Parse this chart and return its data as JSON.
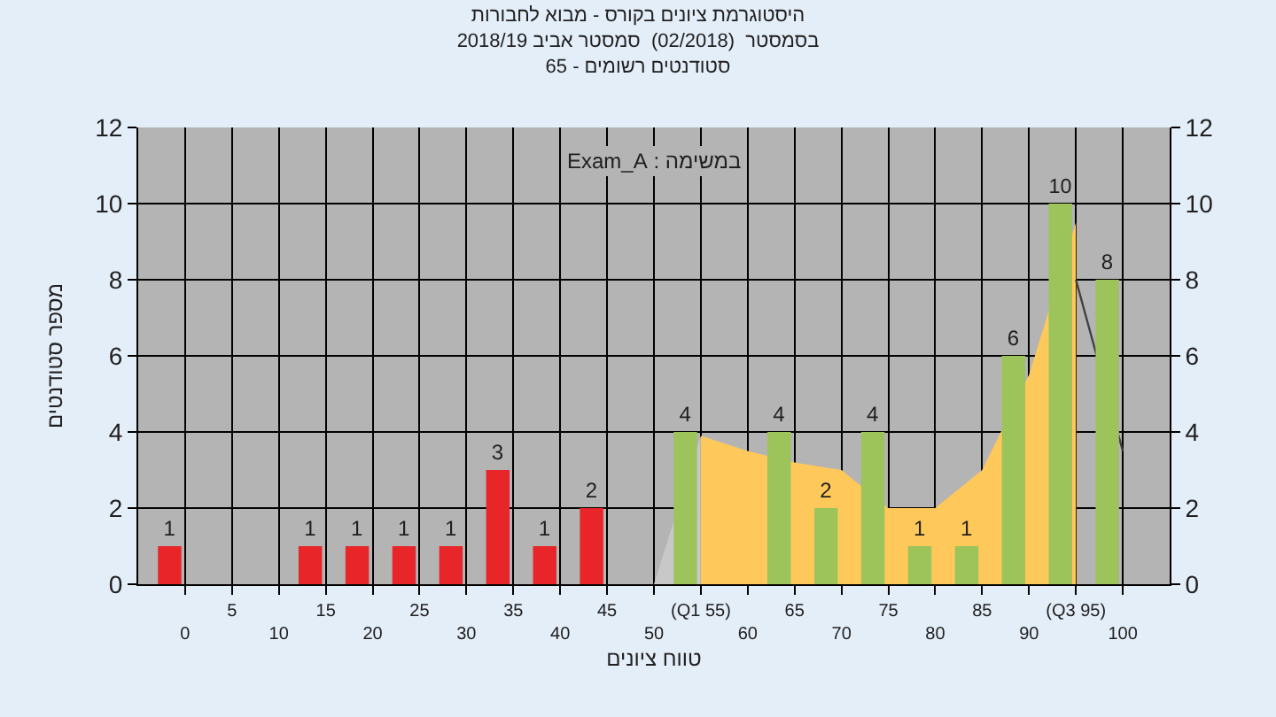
{
  "chart_data": {
    "type": "bar",
    "title": "היסטוגרמת ציונים בקורס - מבוא לחבורות\nבסמסטר  (02/2018)  סמסטר אביב 2018/19\nסטודנטים רשומים - 65",
    "xlabel": "טווח ציונים",
    "ylabel": "מספר סטודנטים",
    "annotations": [
      "במשימה : Exam_A"
    ],
    "categories": [
      "0",
      "5",
      "10",
      "15",
      "20",
      "25",
      "30",
      "35",
      "40",
      "45",
      "50",
      "(Q1 55)",
      "60",
      "65",
      "70",
      "75",
      "80",
      "85",
      "90",
      "(Q3 95)",
      "100"
    ],
    "series": [
      {
        "type": "area",
        "color": "#c8c8c8",
        "values": [
          null,
          null,
          null,
          null,
          null,
          null,
          null,
          null,
          null,
          null,
          0,
          3.9,
          null,
          null,
          null,
          null,
          null,
          null,
          null,
          null,
          null
        ]
      },
      {
        "type": "area",
        "color": "#ffc85a",
        "values": [
          null,
          null,
          null,
          null,
          null,
          null,
          null,
          null,
          null,
          null,
          null,
          3.9,
          3.5,
          3.2,
          3,
          2,
          2,
          3,
          5.5,
          9.5,
          null
        ]
      },
      {
        "type": "line",
        "color": "#404040",
        "values": [
          null,
          null,
          null,
          null,
          null,
          null,
          null,
          null,
          null,
          null,
          null,
          null,
          null,
          null,
          null,
          null,
          null,
          null,
          null,
          8,
          3.5
        ]
      },
      {
        "colors": [
          "#e8262a",
          "#e8262a",
          "#e8262a",
          "#e8262a",
          "#e8262a",
          "#e8262a",
          "#e8262a",
          "#e8262a",
          "#e8262a",
          "#e8262a",
          "#e8262a",
          "#9cc45a",
          "#9cc45a",
          "#9cc45a",
          "#9cc45a",
          "#9cc45a",
          "#9cc45a",
          "#9cc45a",
          "#9cc45a",
          "#9cc45a",
          "#9cc45a"
        ],
        "values": [
          1,
          0,
          0,
          1,
          1,
          1,
          1,
          3,
          1,
          2,
          0,
          4,
          0,
          4,
          2,
          4,
          1,
          1,
          6,
          10,
          8
        ],
        "value_labels": [
          "1",
          null,
          null,
          "1",
          "1",
          "1",
          "1",
          "3",
          "1",
          "2",
          null,
          "4",
          null,
          "4",
          "2",
          "4",
          "1",
          "1",
          "6",
          "10",
          "8"
        ]
      }
    ],
    "ylim": [
      0,
      12
    ],
    "yticks": [
      0,
      2,
      4,
      6,
      8,
      10,
      12
    ],
    "y2lim": [
      0,
      12
    ],
    "y2ticks": [
      0,
      2,
      4,
      6,
      8,
      10,
      12
    ],
    "grid": true
  }
}
